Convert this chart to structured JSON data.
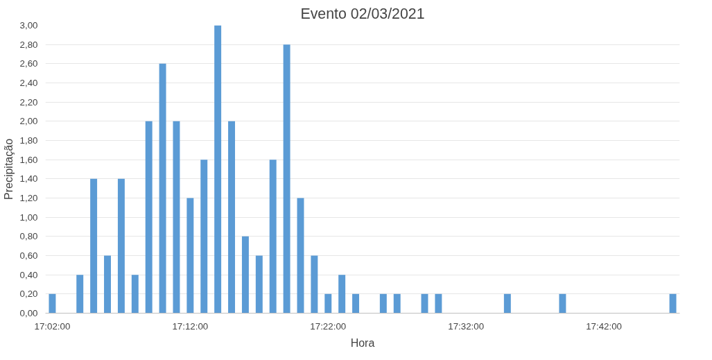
{
  "chart_data": {
    "type": "bar",
    "title": "Evento 02/03/2021",
    "xlabel": "Hora",
    "ylabel": "Precipitação",
    "categories": [
      "17:02:00",
      null,
      null,
      null,
      null,
      null,
      null,
      null,
      null,
      null,
      "17:12:00",
      null,
      null,
      null,
      null,
      null,
      null,
      null,
      null,
      null,
      "17:22:00",
      null,
      null,
      null,
      null,
      null,
      null,
      null,
      null,
      null,
      "17:32:00",
      null,
      null,
      null,
      null,
      null,
      null,
      null,
      null,
      null,
      "17:42:00",
      null,
      null,
      null,
      null,
      null
    ],
    "values": [
      0.2,
      0,
      0.4,
      1.4,
      0.6,
      1.4,
      0.4,
      2.0,
      2.6,
      2.0,
      1.2,
      1.6,
      3.0,
      2.0,
      0.8,
      0.6,
      1.6,
      2.8,
      1.2,
      0.6,
      0.2,
      0.4,
      0.2,
      0,
      0.2,
      0.2,
      0,
      0.2,
      0.2,
      0,
      0,
      0,
      0,
      0.2,
      0,
      0,
      0,
      0.2,
      0,
      0,
      0,
      0,
      0,
      0,
      0,
      0.2
    ],
    "color": "#5b9bd5",
    "ylim": [
      0,
      3
    ],
    "yticks": [
      {
        "value": 0,
        "label": "0,00"
      },
      {
        "value": 0.2,
        "label": "0,20"
      },
      {
        "value": 0.4,
        "label": "0,40"
      },
      {
        "value": 0.6,
        "label": "0,60"
      },
      {
        "value": 0.8,
        "label": "0,80"
      },
      {
        "value": 1.0,
        "label": "1,00"
      },
      {
        "value": 1.2,
        "label": "1,20"
      },
      {
        "value": 1.4,
        "label": "1,40"
      },
      {
        "value": 1.6,
        "label": "1,60"
      },
      {
        "value": 1.8,
        "label": "1,80"
      },
      {
        "value": 2.0,
        "label": "2,00"
      },
      {
        "value": 2.2,
        "label": "2,20"
      },
      {
        "value": 2.4,
        "label": "2,40"
      },
      {
        "value": 2.6,
        "label": "2,60"
      },
      {
        "value": 2.8,
        "label": "2,80"
      },
      {
        "value": 3.0,
        "label": "3,00"
      }
    ],
    "grid": "y"
  }
}
